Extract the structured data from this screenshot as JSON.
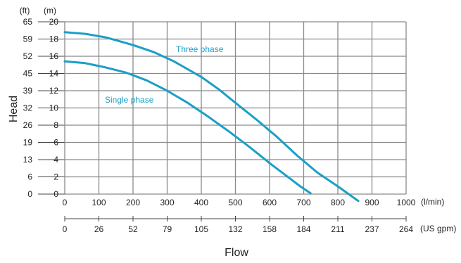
{
  "chart_data": {
    "type": "line",
    "xlabel": "Flow",
    "ylabel": "Head",
    "x_unit_primary": "(l/min)",
    "x_unit_secondary": "(US gpm)",
    "y_unit_meters": "(m)",
    "y_unit_feet": "(ft)",
    "xlim": [
      0,
      1000
    ],
    "ylim": [
      0,
      20
    ],
    "x_ticks": [
      "0",
      "100",
      "200",
      "300",
      "400",
      "500",
      "600",
      "700",
      "800",
      "900",
      "1000"
    ],
    "x_ticks_gpm": [
      "0",
      "26",
      "52",
      "79",
      "105",
      "132",
      "158",
      "184",
      "211",
      "237",
      "264"
    ],
    "y_ticks_m": [
      "0",
      "2",
      "4",
      "6",
      "8",
      "10",
      "12",
      "14",
      "16",
      "18",
      "20"
    ],
    "y_ticks_ft": [
      "0",
      "6",
      "13",
      "19",
      "26",
      "32",
      "39",
      "45",
      "52",
      "59",
      "65"
    ],
    "grid": true,
    "series": [
      {
        "name": "Three phase",
        "color": "#1b9fc6",
        "points": [
          [
            0,
            18.8
          ],
          [
            60,
            18.6
          ],
          [
            120,
            18.2
          ],
          [
            200,
            17.3
          ],
          [
            260,
            16.5
          ],
          [
            320,
            15.4
          ],
          [
            400,
            13.6
          ],
          [
            450,
            12.2
          ],
          [
            500,
            10.6
          ],
          [
            560,
            8.7
          ],
          [
            620,
            6.7
          ],
          [
            680,
            4.5
          ],
          [
            740,
            2.5
          ],
          [
            800,
            0.9
          ],
          [
            860,
            -0.8
          ]
        ]
      },
      {
        "name": "Single phase",
        "color": "#1b9fc6",
        "points": [
          [
            0,
            15.4
          ],
          [
            60,
            15.2
          ],
          [
            120,
            14.7
          ],
          [
            180,
            14.1
          ],
          [
            240,
            13.2
          ],
          [
            300,
            12.0
          ],
          [
            360,
            10.6
          ],
          [
            420,
            9.0
          ],
          [
            480,
            7.3
          ],
          [
            540,
            5.5
          ],
          [
            600,
            3.6
          ],
          [
            660,
            1.8
          ],
          [
            690,
            0.9
          ],
          [
            720,
            0.1
          ]
        ]
      }
    ]
  }
}
